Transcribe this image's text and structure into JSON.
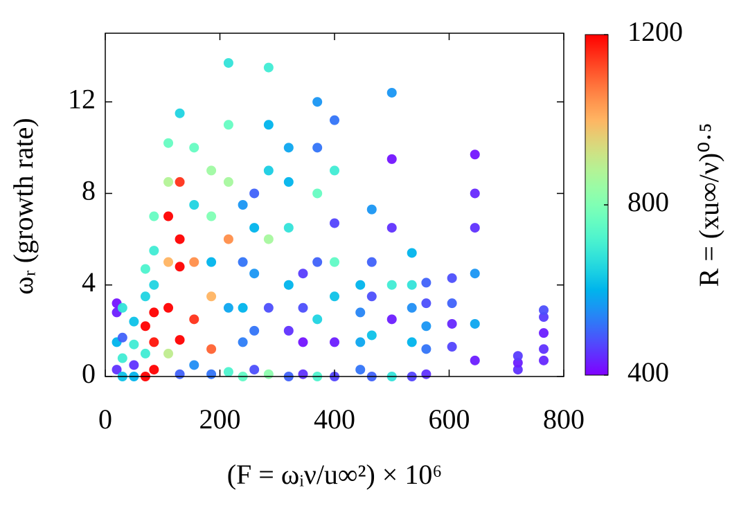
{
  "chart_data": {
    "type": "scatter",
    "x_label": "(F = ωᵢν/u∞²) × 10⁶",
    "y_label": "ωᵣ (growth rate)",
    "colorbar_label": "R = (xu∞/ν)⁰·⁵",
    "xlim": [
      0,
      800
    ],
    "xticks": [
      0,
      200,
      400,
      600,
      800
    ],
    "ylim": [
      0,
      15
    ],
    "yticks": [
      0,
      4,
      8,
      12
    ],
    "clim": [
      400,
      1200
    ],
    "cticks": [
      400,
      800,
      1200
    ],
    "colormap": "rainbow",
    "x": [
      20,
      20,
      20,
      20,
      30,
      30,
      30,
      30,
      50,
      50,
      50,
      50,
      70,
      70,
      70,
      70,
      70,
      85,
      85,
      85,
      85,
      85,
      85,
      110,
      110,
      110,
      110,
      110,
      110,
      130,
      130,
      130,
      130,
      130,
      130,
      155,
      155,
      155,
      155,
      155,
      185,
      185,
      185,
      185,
      185,
      185,
      215,
      215,
      215,
      215,
      215,
      215,
      240,
      240,
      240,
      240,
      240,
      260,
      260,
      260,
      260,
      260,
      285,
      285,
      285,
      285,
      285,
      285,
      320,
      320,
      320,
      320,
      320,
      320,
      345,
      345,
      345,
      345,
      370,
      370,
      370,
      370,
      370,
      370,
      400,
      400,
      400,
      400,
      400,
      400,
      400,
      445,
      445,
      445,
      445,
      465,
      465,
      465,
      465,
      465,
      500,
      500,
      500,
      500,
      500,
      500,
      535,
      535,
      535,
      535,
      535,
      560,
      560,
      560,
      560,
      560,
      605,
      605,
      605,
      605,
      645,
      645,
      645,
      645,
      645,
      645,
      720,
      720,
      720,
      765,
      765,
      765,
      765,
      765
    ],
    "values": [
      0.3,
      1.5,
      2.8,
      3.2,
      0,
      0.8,
      1.7,
      3.0,
      0,
      0.5,
      1.4,
      2.4,
      0,
      1.0,
      2.2,
      3.5,
      4.7,
      0.3,
      1.5,
      2.8,
      4.0,
      5.5,
      7.0,
      1.0,
      3.0,
      5.0,
      7.0,
      8.5,
      10.2,
      0.1,
      1.6,
      4.8,
      6.0,
      8.5,
      11.5,
      0.5,
      2.5,
      5.0,
      7.5,
      10.0,
      0.1,
      1.2,
      3.5,
      5.0,
      7.0,
      9.0,
      0.2,
      3.0,
      6.0,
      8.5,
      11.0,
      13.7,
      0,
      1.5,
      3.0,
      5.0,
      7.5,
      0.3,
      2.0,
      4.5,
      6.5,
      8.0,
      0.1,
      3.0,
      6.0,
      9.0,
      11.0,
      13.5,
      0,
      2.0,
      4.0,
      6.5,
      8.5,
      10.0,
      0.1,
      1.5,
      3.0,
      4.5,
      0,
      2.5,
      5.0,
      8.0,
      10.0,
      12.0,
      0,
      1.5,
      3.5,
      5.0,
      6.7,
      9.0,
      11.2,
      0.3,
      1.5,
      2.8,
      4.0,
      0,
      1.8,
      3.5,
      5.0,
      7.3,
      0,
      2.5,
      4.0,
      6.5,
      9.5,
      12.4,
      0,
      1.5,
      3.0,
      4.0,
      5.4,
      0.1,
      1.2,
      2.2,
      3.2,
      4.1,
      1.3,
      2.3,
      3.2,
      4.3,
      0.7,
      2.3,
      4.5,
      6.5,
      8.0,
      9.7,
      0.3,
      0.6,
      0.9,
      0.7,
      1.2,
      1.9,
      2.6,
      2.9
    ],
    "color_values": [
      450,
      600,
      430,
      420,
      620,
      700,
      500,
      680,
      600,
      450,
      700,
      620,
      1200,
      700,
      1200,
      650,
      720,
      1200,
      1180,
      1200,
      650,
      700,
      760,
      900,
      1200,
      1000,
      1200,
      880,
      760,
      500,
      1200,
      1200,
      1200,
      1150,
      650,
      550,
      1150,
      1050,
      650,
      760,
      520,
      1100,
      1000,
      600,
      800,
      850,
      720,
      580,
      1050,
      860,
      760,
      680,
      750,
      530,
      600,
      520,
      560,
      480,
      520,
      560,
      600,
      500,
      820,
      480,
      860,
      640,
      600,
      700,
      500,
      450,
      600,
      680,
      600,
      580,
      450,
      420,
      480,
      460,
      720,
      650,
      500,
      760,
      520,
      560,
      470,
      430,
      620,
      750,
      470,
      700,
      520,
      520,
      580,
      540,
      600,
      500,
      620,
      480,
      500,
      560,
      680,
      430,
      700,
      450,
      420,
      560,
      470,
      600,
      550,
      680,
      600,
      450,
      520,
      560,
      480,
      500,
      470,
      440,
      500,
      480,
      430,
      580,
      560,
      450,
      440,
      420,
      450,
      430,
      460,
      440,
      450,
      430,
      460,
      480
    ]
  }
}
